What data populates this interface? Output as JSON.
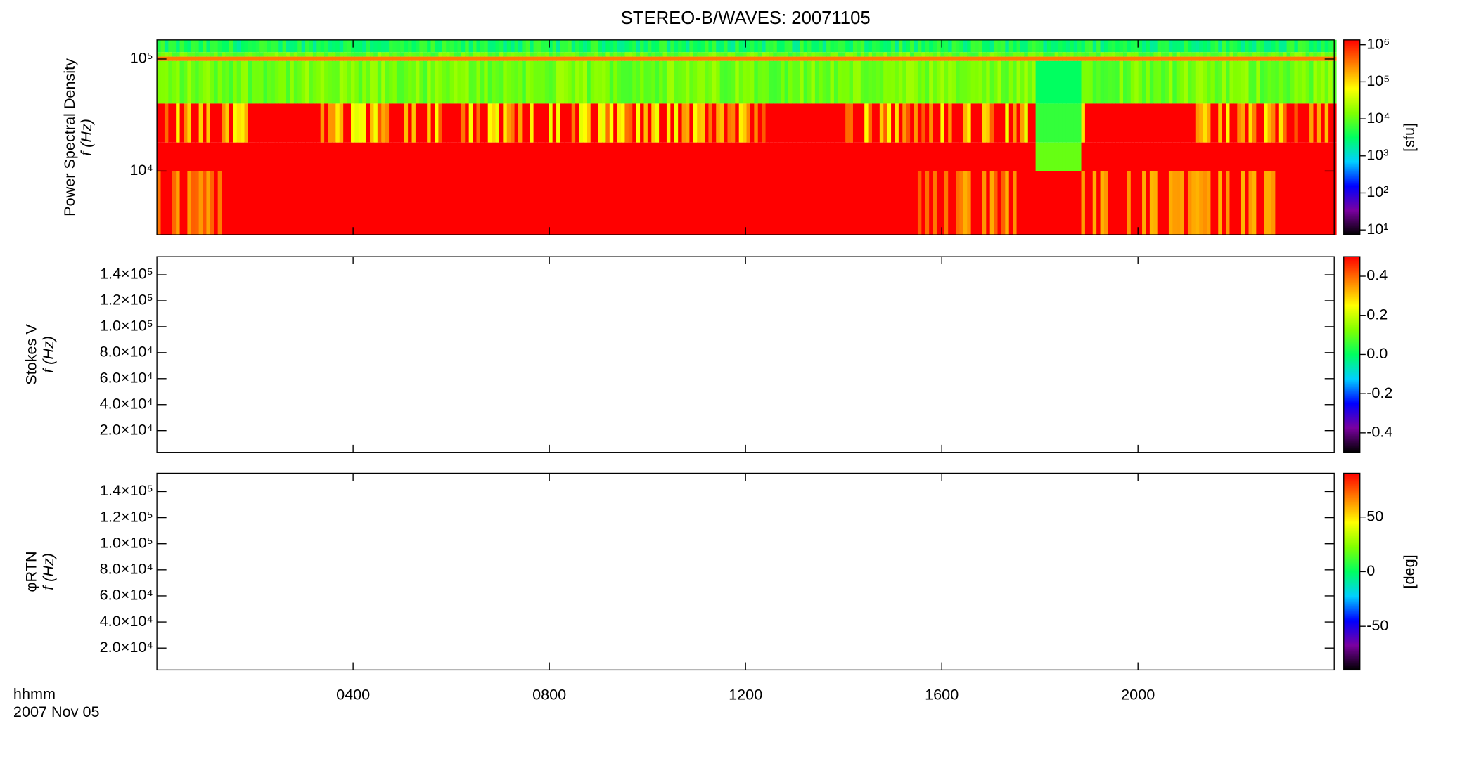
{
  "chart_data": {
    "type": "spectrogram",
    "title": "STEREO-B/WAVES: 20071105",
    "x_label": "hhmm",
    "x_date": "2007 Nov 05",
    "xlim": [
      0,
      24
    ],
    "xticks": [
      {
        "value": 4,
        "label": "0400"
      },
      {
        "value": 8,
        "label": "0800"
      },
      {
        "value": 12,
        "label": "1200"
      },
      {
        "value": 16,
        "label": "1600"
      },
      {
        "value": 20,
        "label": "2000"
      }
    ],
    "colormap": [
      "#000000",
      "#7a00a0",
      "#0000ff",
      "#00d0ff",
      "#00ff60",
      "#80ff00",
      "#ffff00",
      "#ff8000",
      "#ff0000"
    ],
    "panels": [
      {
        "ylabel": [
          "Power Spectral Density",
          "f (Hz)"
        ],
        "ylog": true,
        "ylim": [
          2700,
          148000
        ],
        "yticks": [
          {
            "value": 10000,
            "label": "10⁴"
          },
          {
            "value": 100000,
            "label": "10⁵"
          }
        ],
        "colorbar": {
          "label": "[sfu]",
          "log": true,
          "lim": [
            7.4,
            1350000
          ],
          "ticks": [
            {
              "value": 10,
              "label": "10¹"
            },
            {
              "value": 100,
              "label": "10²"
            },
            {
              "value": 1000,
              "label": "10³"
            },
            {
              "value": 10000,
              "label": "10⁴"
            },
            {
              "value": 100000,
              "label": "10⁵"
            },
            {
              "value": 1000000,
              "label": "10⁶"
            }
          ]
        }
      },
      {
        "ylabel": [
          "Stokes V",
          "f (Hz)"
        ],
        "ylog": false,
        "ylim": [
          3200,
          154000
        ],
        "yticks": [
          {
            "value": 20000,
            "label": "2.0×10⁴"
          },
          {
            "value": 40000,
            "label": "4.0×10⁴"
          },
          {
            "value": 60000,
            "label": "6.0×10⁴"
          },
          {
            "value": 80000,
            "label": "8.0×10⁴"
          },
          {
            "value": 100000,
            "label": "1.0×10⁵"
          },
          {
            "value": 120000,
            "label": "1.2×10⁵"
          },
          {
            "value": 140000,
            "label": "1.4×10⁵"
          }
        ],
        "colorbar": {
          "log": false,
          "lim": [
            -0.5,
            0.5
          ],
          "ticks": [
            -0.4,
            -0.2,
            {
              "value": 0,
              "label": "0.0"
            },
            0.2,
            0.4
          ]
        }
      },
      {
        "ylabel": [
          "φRTN",
          "f (Hz)"
        ],
        "ylog": false,
        "ylim": [
          3200,
          154000
        ],
        "yticks": [
          {
            "value": 20000,
            "label": "2.0×10⁴"
          },
          {
            "value": 40000,
            "label": "4.0×10⁴"
          },
          {
            "value": 60000,
            "label": "6.0×10⁴"
          },
          {
            "value": 80000,
            "label": "8.0×10⁴"
          },
          {
            "value": 100000,
            "label": "1.0×10⁵"
          },
          {
            "value": 120000,
            "label": "1.2×10⁵"
          },
          {
            "value": 140000,
            "label": "1.4×10⁵"
          }
        ],
        "colorbar": {
          "label": "[deg]",
          "log": false,
          "lim": [
            -90,
            90
          ],
          "ticks": [
            -50,
            0,
            50
          ]
        }
      }
    ]
  }
}
